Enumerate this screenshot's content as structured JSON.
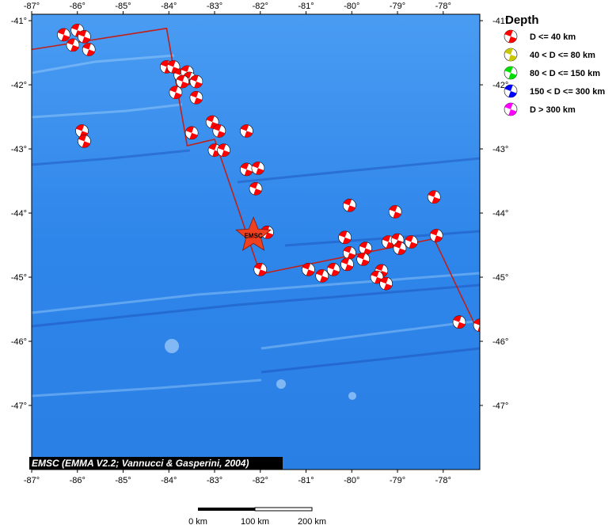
{
  "map": {
    "lon_range": [
      -87,
      -77.2
    ],
    "lat_range": [
      -48,
      -40.9
    ],
    "x_ticks": [
      -87,
      -86,
      -85,
      -84,
      -83,
      -82,
      -81,
      -80,
      -79,
      -78
    ],
    "y_ticks": [
      -41,
      -42,
      -43,
      -44,
      -45,
      -46,
      -47
    ],
    "x_tick_labels": [
      "-87°",
      "-86°",
      "-85°",
      "-84°",
      "-83°",
      "-82°",
      "-81°",
      "-80°",
      "-79°",
      "-78°"
    ],
    "y_tick_labels": [
      "-41°",
      "-42°",
      "-43°",
      "-44°",
      "-45°",
      "-46°",
      "-47°"
    ],
    "ocean_color": "#2f86ea",
    "ridge_color": "#c0201a"
  },
  "credit": "EMSC (EMMA V2.2; Vannucci & Gasperini, 2004)",
  "epicenter": {
    "label": "EMSC",
    "lon": -82.15,
    "lat": -44.35,
    "color": "#f04020"
  },
  "legend": {
    "title": "Depth",
    "items": [
      {
        "label": "D <= 40 km",
        "color": "#ff0000"
      },
      {
        "label": "40 < D <= 80 km",
        "color": "#c8c800"
      },
      {
        "label": "80 < D <= 150 km",
        "color": "#00e000"
      },
      {
        "label": "150 < D <= 300 km",
        "color": "#0000ff"
      },
      {
        "label": "D > 300 km",
        "color": "#ff00ff"
      }
    ]
  },
  "scalebar": {
    "labels": [
      "0 km",
      "100 km",
      "200 km"
    ]
  },
  "ridge_path": [
    [
      -87,
      -41.45
    ],
    [
      -84.05,
      -41.12
    ],
    [
      -83.6,
      -42.95
    ],
    [
      -83.0,
      -42.85
    ],
    [
      -82.0,
      -44.95
    ],
    [
      -78.2,
      -44.4
    ],
    [
      -77.3,
      -45.75
    ]
  ],
  "events": [
    [
      -86.3,
      -41.22
    ],
    [
      -86.0,
      -41.15
    ],
    [
      -85.85,
      -41.25
    ],
    [
      -86.1,
      -41.38
    ],
    [
      -85.75,
      -41.45
    ],
    [
      -85.9,
      -42.72
    ],
    [
      -85.85,
      -42.88
    ],
    [
      -84.05,
      -41.72
    ],
    [
      -83.9,
      -41.72
    ],
    [
      -83.75,
      -41.85
    ],
    [
      -83.6,
      -41.8
    ],
    [
      -83.55,
      -41.9
    ],
    [
      -83.7,
      -41.95
    ],
    [
      -83.4,
      -41.95
    ],
    [
      -83.85,
      -42.12
    ],
    [
      -83.4,
      -42.2
    ],
    [
      -83.5,
      -42.75
    ],
    [
      -83.05,
      -42.58
    ],
    [
      -82.9,
      -42.72
    ],
    [
      -82.3,
      -42.72
    ],
    [
      -83.0,
      -43.02
    ],
    [
      -82.8,
      -43.02
    ],
    [
      -82.3,
      -43.32
    ],
    [
      -82.05,
      -43.3
    ],
    [
      -82.1,
      -43.62
    ],
    [
      -81.85,
      -44.3
    ],
    [
      -82.0,
      -44.88
    ],
    [
      -80.95,
      -44.88
    ],
    [
      -80.65,
      -44.98
    ],
    [
      -80.4,
      -44.88
    ],
    [
      -80.05,
      -43.88
    ],
    [
      -80.15,
      -44.38
    ],
    [
      -80.05,
      -44.62
    ],
    [
      -80.1,
      -44.8
    ],
    [
      -79.7,
      -44.55
    ],
    [
      -79.75,
      -44.72
    ],
    [
      -79.35,
      -44.9
    ],
    [
      -79.45,
      -45.0
    ],
    [
      -79.25,
      -45.1
    ],
    [
      -79.05,
      -43.98
    ],
    [
      -79.2,
      -44.45
    ],
    [
      -79.0,
      -44.42
    ],
    [
      -78.95,
      -44.55
    ],
    [
      -78.7,
      -44.45
    ],
    [
      -78.2,
      -43.75
    ],
    [
      -78.15,
      -44.35
    ],
    [
      -77.65,
      -45.7
    ],
    [
      -77.2,
      -45.75
    ]
  ]
}
